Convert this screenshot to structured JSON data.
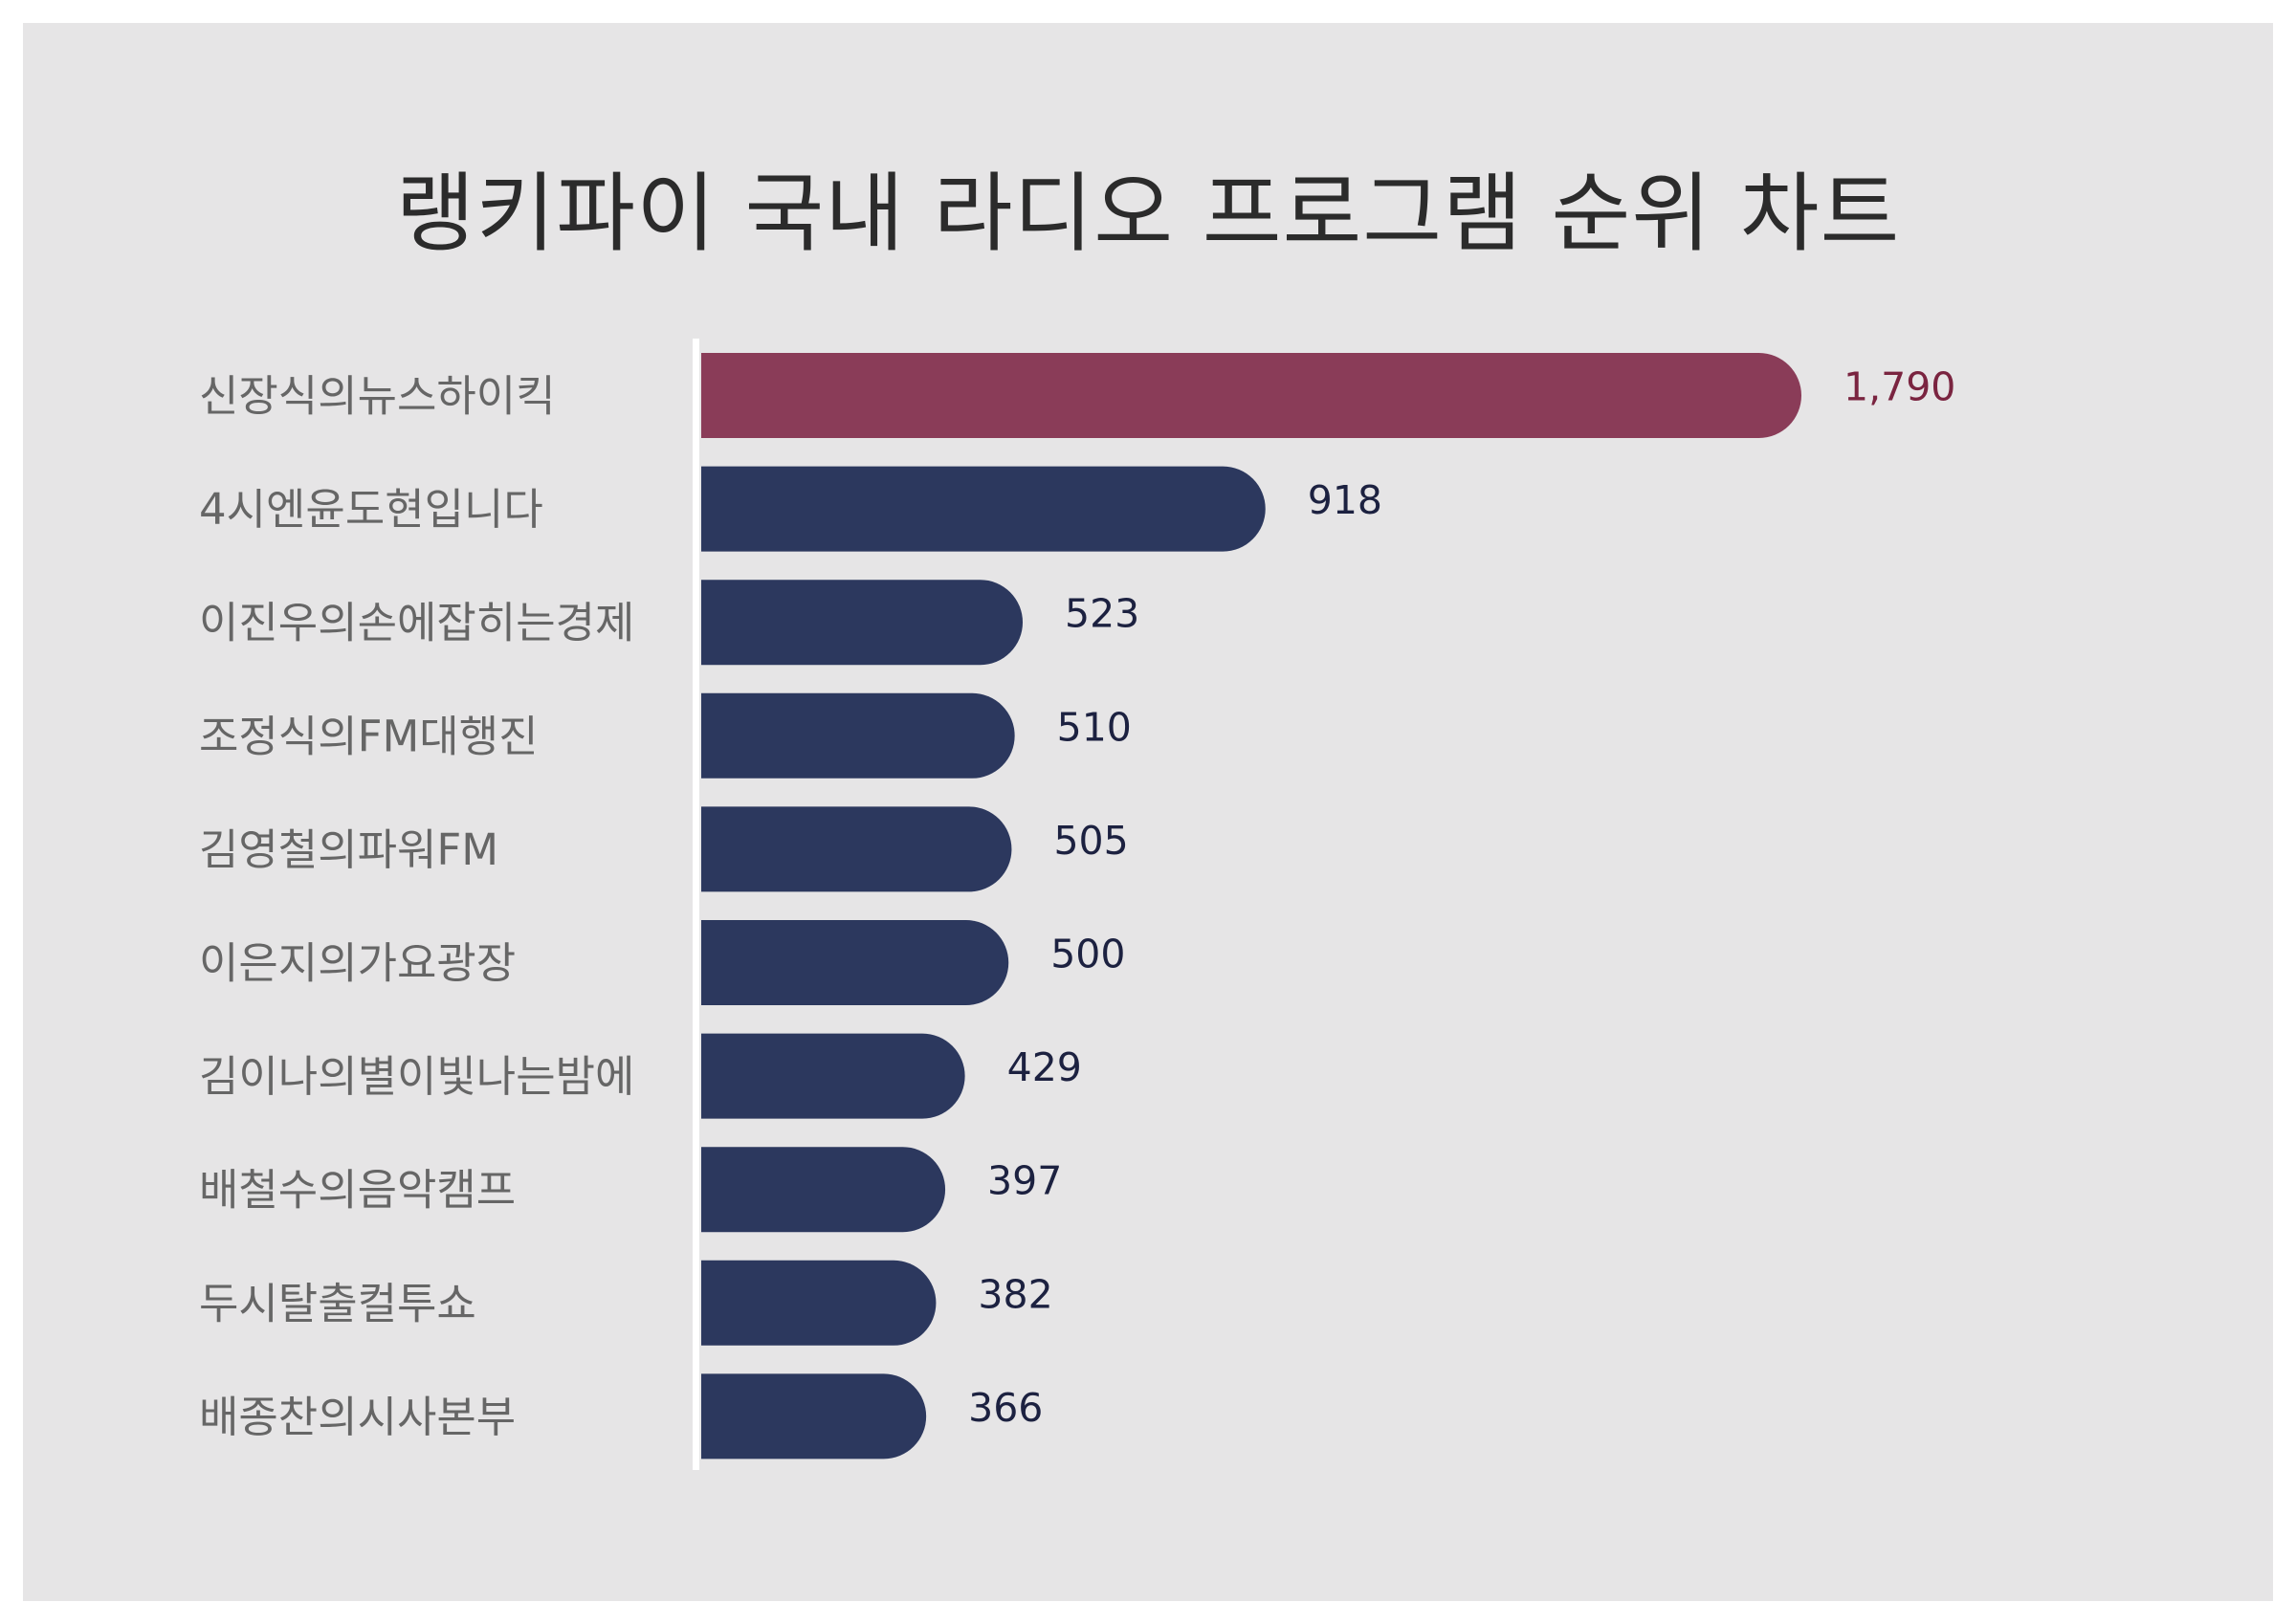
{
  "chart_data": {
    "type": "bar",
    "orientation": "horizontal",
    "title": "랭키파이 국내 라디오 프로그램 순위 차트",
    "categories": [
      "신장식의뉴스하이킥",
      "4시엔윤도현입니다",
      "이진우의손에잡히는경제",
      "조정식의FM대행진",
      "김영철의파워FM",
      "이은지의가요광장",
      "김이나의별이빛나는밤에",
      "배철수의음악캠프",
      "두시탈출컬투쇼",
      "배종찬의시사본부"
    ],
    "values": [
      1790,
      918,
      523,
      510,
      505,
      500,
      429,
      397,
      382,
      366
    ],
    "value_labels": [
      "1,790",
      "918",
      "523",
      "510",
      "505",
      "500",
      "429",
      "397",
      "382",
      "366"
    ],
    "xlabel": "",
    "ylabel": "",
    "xlim": [
      0,
      1790
    ],
    "grid": false,
    "colors": {
      "highlight": "#8a3c58",
      "bar": "#2c385e",
      "highlight_label": "#7a2440",
      "label": "#1c2140",
      "background": "#e6e5e6",
      "axis": "#ffffff"
    }
  }
}
